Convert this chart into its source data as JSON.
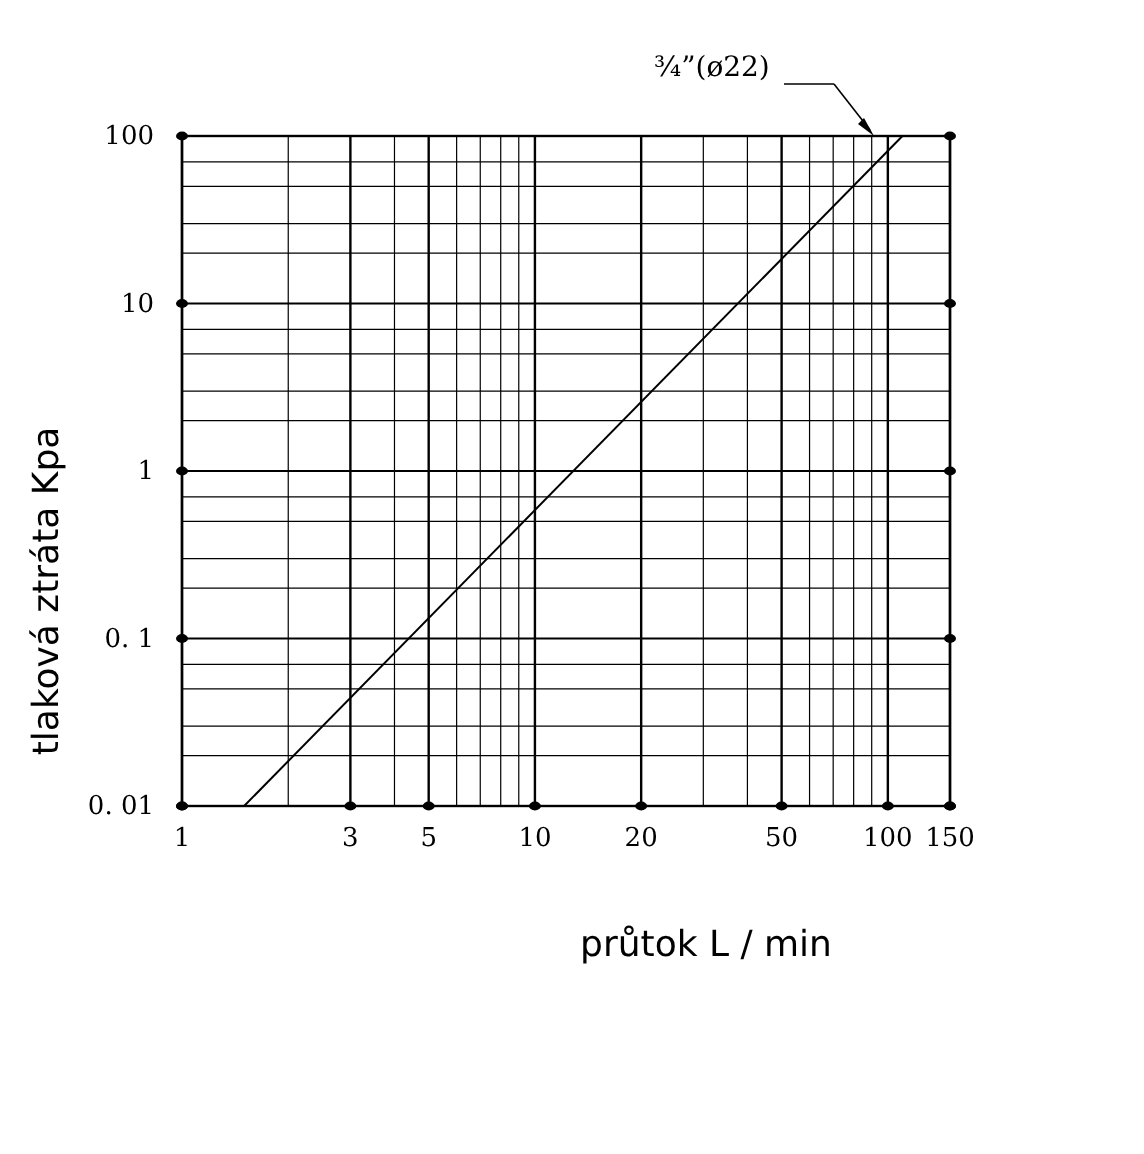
{
  "chart_data": {
    "type": "line",
    "xlabel": "průtok L / min",
    "ylabel": "tlaková ztráta Kpa",
    "log": "xy",
    "grid": true,
    "marker": "none",
    "line_style": "solid",
    "series": [
      {
        "color": "#000000",
        "x": [
          1.5,
          110
        ],
        "values": [
          0.01,
          100
        ]
      }
    ],
    "xlim": [
      1,
      150
    ],
    "ylim": [
      0.01,
      100
    ],
    "xticks": [
      1,
      {
        "value": 2,
        "label": null
      },
      3,
      {
        "value": 4,
        "label": null
      },
      5,
      {
        "value": 6,
        "label": null
      },
      {
        "value": 7,
        "label": null
      },
      {
        "value": 8,
        "label": null
      },
      {
        "value": 9,
        "label": null
      },
      10,
      20,
      {
        "value": 30,
        "label": null
      },
      {
        "value": 40,
        "label": null
      },
      50,
      {
        "value": 60,
        "label": null
      },
      {
        "value": 70,
        "label": null
      },
      {
        "value": 80,
        "label": null
      },
      {
        "value": 90,
        "label": null
      },
      100,
      150
    ],
    "yticks": [
      {
        "value": 0.01,
        "label": "0. 01"
      },
      {
        "value": 0.02,
        "label": null
      },
      {
        "value": 0.03,
        "label": null
      },
      {
        "value": 0.05,
        "label": null
      },
      {
        "value": 0.07,
        "label": null
      },
      {
        "value": 0.1,
        "label": "0. 1"
      },
      {
        "value": 0.2,
        "label": null
      },
      {
        "value": 0.3,
        "label": null
      },
      {
        "value": 0.5,
        "label": null
      },
      {
        "value": 0.7,
        "label": null
      },
      1,
      {
        "value": 2,
        "label": null
      },
      {
        "value": 3,
        "label": null
      },
      {
        "value": 5,
        "label": null
      },
      {
        "value": 7,
        "label": null
      },
      10,
      {
        "value": 20,
        "label": null
      },
      {
        "value": 30,
        "label": null
      },
      {
        "value": 50,
        "label": null
      },
      {
        "value": 70,
        "label": null
      },
      100
    ],
    "annotations": [
      "¾”(ø22)"
    ]
  }
}
